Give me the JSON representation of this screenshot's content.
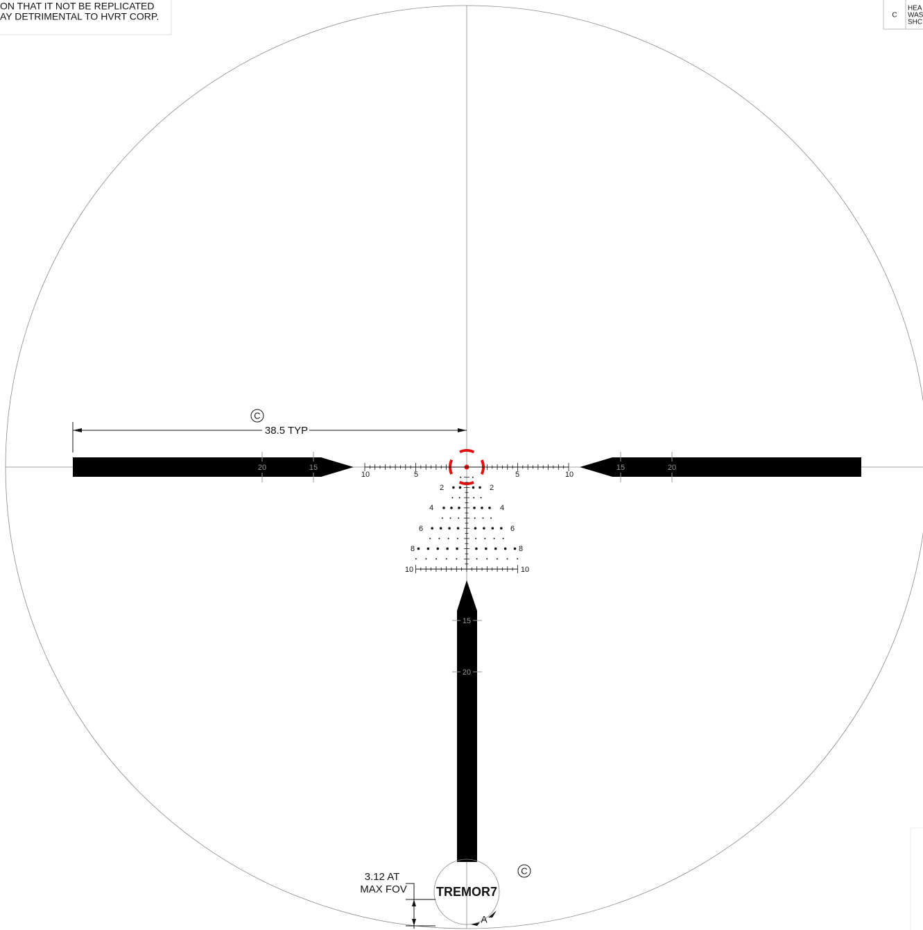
{
  "notes": [
    "ON THAT IT NOT BE REPLICATED",
    "AY DETRIMENTAL TO HVRT CORP."
  ],
  "revision_block": {
    "letter": "C",
    "lines": [
      "HEA",
      "WAS",
      "SHC"
    ]
  },
  "callouts": [
    "C",
    "C"
  ],
  "dimensions": {
    "post_offset": "38.5 TYP",
    "fov": [
      "3.12 AT",
      "MAX FOV"
    ]
  },
  "section_mark": "A",
  "reticle": {
    "name": "TREMOR7",
    "left_post_labels": [
      "20",
      "15"
    ],
    "right_post_labels": [
      "15",
      "20"
    ],
    "bottom_post_labels": [
      "15",
      "20"
    ],
    "horizontal_scale_labels": [
      "10",
      "5",
      "5",
      "10"
    ],
    "tree_left_labels": [
      "2",
      "4",
      "6",
      "8",
      "10"
    ],
    "tree_right_labels": [
      "2",
      "4",
      "6",
      "8",
      "10"
    ]
  }
}
